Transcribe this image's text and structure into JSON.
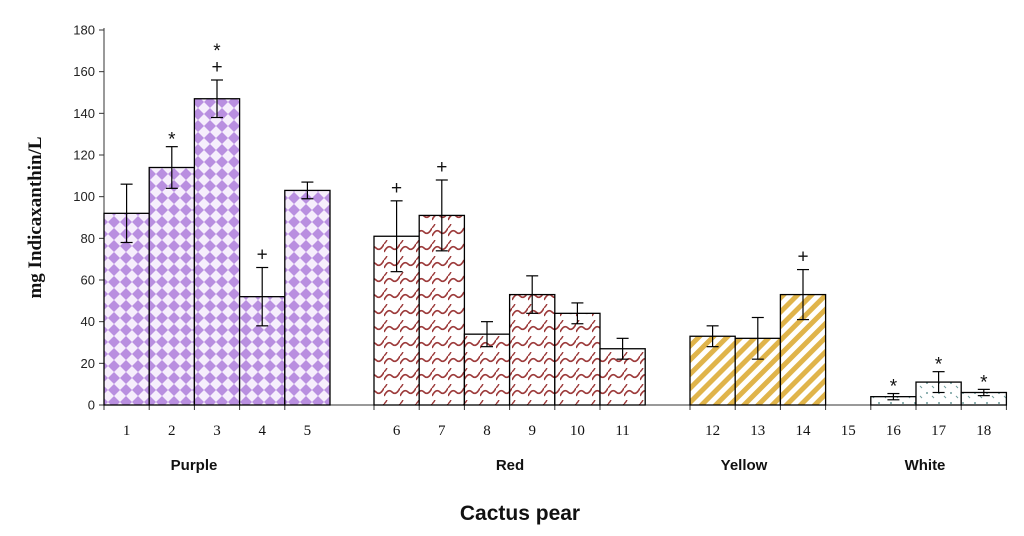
{
  "chart_data": {
    "type": "bar",
    "title": "",
    "xlabel": "Cactus pear",
    "ylabel": "mg Indicaxanthin/L",
    "ylim": [
      0,
      180
    ],
    "yticks": [
      0,
      20,
      40,
      60,
      80,
      100,
      120,
      140,
      160,
      180
    ],
    "grid": false,
    "legend": "none",
    "categories": [
      "1",
      "2",
      "3",
      "4",
      "5",
      "6",
      "7",
      "8",
      "9",
      "10",
      "11",
      "12",
      "13",
      "14",
      "15",
      "16",
      "17",
      "18"
    ],
    "values": [
      92,
      114,
      147,
      52,
      103,
      81,
      91,
      34,
      53,
      44,
      27,
      33,
      32,
      53,
      0,
      4,
      11,
      6
    ],
    "errors": [
      14,
      10,
      9,
      14,
      4,
      17,
      17,
      6,
      9,
      5,
      5,
      5,
      10,
      12,
      0,
      1.5,
      5,
      1.5
    ],
    "groups": [
      {
        "name": "Purple",
        "categories": [
          "1",
          "2",
          "3",
          "4",
          "5"
        ],
        "color": "#b98fe0",
        "pattern": "diamond-check"
      },
      {
        "name": "Red",
        "categories": [
          "6",
          "7",
          "8",
          "9",
          "10",
          "11"
        ],
        "color": "#9c3a3a",
        "pattern": "wave"
      },
      {
        "name": "Yellow",
        "categories": [
          "12",
          "13",
          "14"
        ],
        "color": "#e0b44a",
        "pattern": "diagonal-stripes"
      },
      {
        "name": "White",
        "categories": [
          "16",
          "17",
          "18"
        ],
        "color": "#8fb8b8",
        "pattern": "sparse-dots"
      }
    ],
    "annotations": [
      {
        "category": "2",
        "marks": [
          "*"
        ]
      },
      {
        "category": "3",
        "marks": [
          "*",
          "+"
        ]
      },
      {
        "category": "4",
        "marks": [
          "+"
        ]
      },
      {
        "category": "6",
        "marks": [
          "+"
        ]
      },
      {
        "category": "7",
        "marks": [
          "+"
        ]
      },
      {
        "category": "14",
        "marks": [
          "+"
        ]
      },
      {
        "category": "16",
        "marks": [
          "*"
        ]
      },
      {
        "category": "17",
        "marks": [
          "*"
        ]
      },
      {
        "category": "18",
        "marks": [
          "*"
        ]
      }
    ]
  }
}
